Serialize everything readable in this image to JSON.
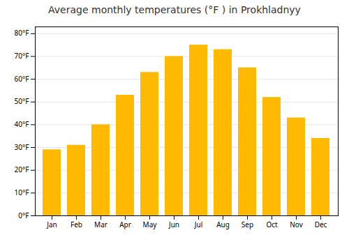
{
  "chart_data": {
    "type": "bar",
    "title": "Average monthly temperatures (°F ) in Prokhladnyy",
    "categories": [
      "Jan",
      "Feb",
      "Mar",
      "Apr",
      "May",
      "Jun",
      "Jul",
      "Aug",
      "Sep",
      "Oct",
      "Nov",
      "Dec"
    ],
    "values": [
      29,
      31,
      40,
      53,
      63,
      70,
      75,
      73,
      65,
      52,
      43,
      34
    ],
    "color": "#FFBA00",
    "ylim": [
      0,
      83
    ],
    "yticks": [
      {
        "value": 0,
        "label": "0°F"
      },
      {
        "value": 10,
        "label": "10°F"
      },
      {
        "value": 20,
        "label": "20°F"
      },
      {
        "value": 30,
        "label": "30°F"
      },
      {
        "value": 40,
        "label": "40°F"
      },
      {
        "value": 50,
        "label": "50°F"
      },
      {
        "value": 60,
        "label": "60°F"
      },
      {
        "value": 70,
        "label": "70°F"
      },
      {
        "value": 80,
        "label": "80°F"
      }
    ],
    "grid": true
  }
}
